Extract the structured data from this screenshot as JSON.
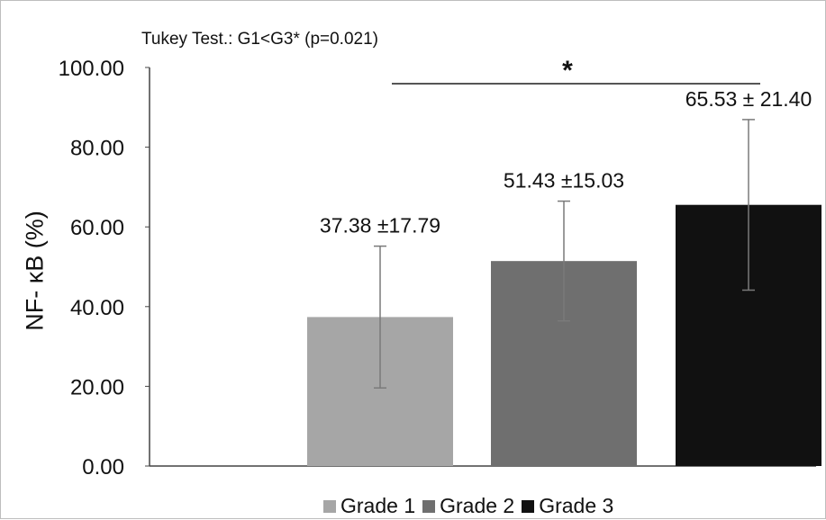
{
  "chart_data": {
    "type": "bar",
    "annotation": "Tukey Test.: G1<G3* (p=0.021)",
    "ylabel": "NF- κB (%)",
    "ylim": [
      0,
      100
    ],
    "yticks": [
      "0.00",
      "20.00",
      "40.00",
      "60.00",
      "80.00",
      "100.00"
    ],
    "categories": [
      "Grade 1",
      "Grade 2",
      "Grade 3"
    ],
    "values": [
      37.38,
      51.43,
      65.53
    ],
    "errors": [
      17.79,
      15.03,
      21.4
    ],
    "value_labels": [
      "37.38 ±17.79",
      "51.43 ±15.03",
      "65.53 ± 21.40"
    ],
    "colors": [
      "#a6a6a6",
      "#6f6f6f",
      "#111111"
    ],
    "significance": {
      "from": "Grade 1",
      "to": "Grade 3",
      "marker": "*"
    },
    "legend": {
      "position": "bottom",
      "items": [
        "Grade 1",
        "Grade 2",
        "Grade 3"
      ]
    },
    "grid": false
  }
}
